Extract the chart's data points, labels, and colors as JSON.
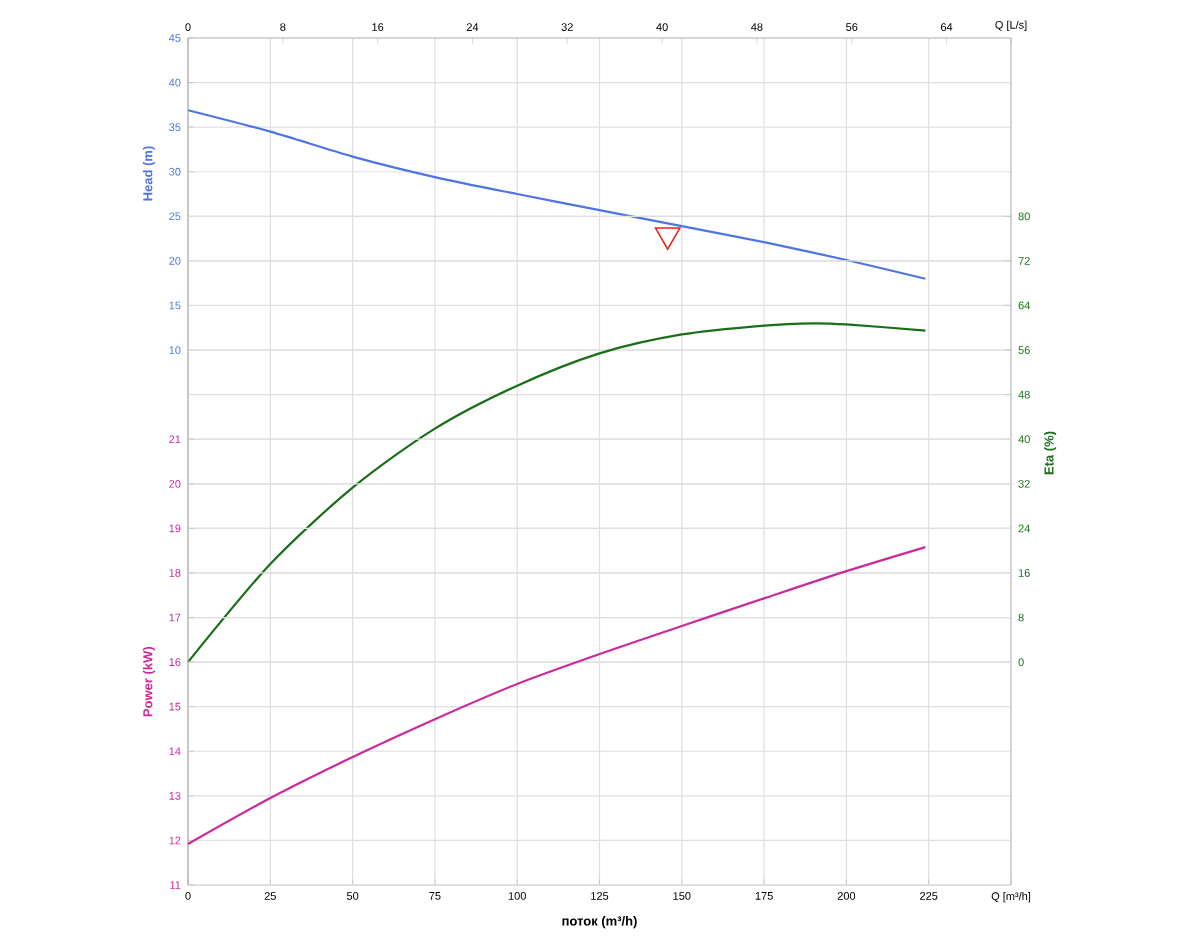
{
  "chart_data": {
    "type": "line",
    "xlabel": "поток (m³/h)",
    "ylabel": "Head (m)",
    "y2label": "Eta (%)",
    "y3label": "Power (kW)",
    "grid": true,
    "xlim": [
      0,
      250
    ],
    "xticks": [
      0,
      25,
      50,
      75,
      100,
      125,
      150,
      175,
      200,
      225,
      {
        "value": 250,
        "label": "Q [m³/h]"
      }
    ],
    "x2lim": [
      0,
      69.44
    ],
    "x2ticks": [
      0,
      8,
      16,
      24,
      32,
      40,
      48,
      56,
      64,
      {
        "value": 69.44,
        "label": "Q [L/s]"
      }
    ],
    "ylim": [
      -50,
      45
    ],
    "yticks": [
      10,
      15,
      20,
      25,
      30,
      35,
      40,
      45
    ],
    "y2lim": [
      -40,
      112
    ],
    "y2ticks": [
      0,
      8,
      16,
      24,
      32,
      40,
      48,
      56,
      64,
      72,
      80
    ],
    "y3lim": [
      11,
      30
    ],
    "y3ticks": [
      11,
      12,
      13,
      14,
      15,
      16,
      17,
      18,
      19,
      20,
      21
    ],
    "x": [
      0,
      25,
      50,
      75,
      100,
      125,
      150,
      175,
      200,
      224
    ],
    "series": [
      {
        "axis": "y2",
        "color": "#1a6e1a",
        "x": [
          0,
          25,
          50,
          75,
          100,
          125,
          150,
          175,
          190,
          200,
          224
        ],
        "values": [
          0,
          17.6,
          31.3,
          41.9,
          49.6,
          55.4,
          58.8,
          60.4,
          60.8,
          60.6,
          59.5
        ]
      },
      {
        "axis": "y3",
        "color": "#cc2a9a",
        "values": [
          11.92,
          12.95,
          13.87,
          14.72,
          15.51,
          16.18,
          16.81,
          17.43,
          18.04,
          18.58
        ]
      },
      {
        "axis": "y",
        "color": "#4f74e3",
        "values": [
          36.9,
          34.5,
          31.7,
          29.4,
          27.5,
          25.7,
          23.9,
          22.1,
          20.1,
          18.0
        ]
      },
      {
        "type": "scatter",
        "axis": "y",
        "color": "#e8231f",
        "marker": "triangle",
        "x": [
          145.7
        ],
        "values": [
          22.9
        ]
      }
    ]
  }
}
